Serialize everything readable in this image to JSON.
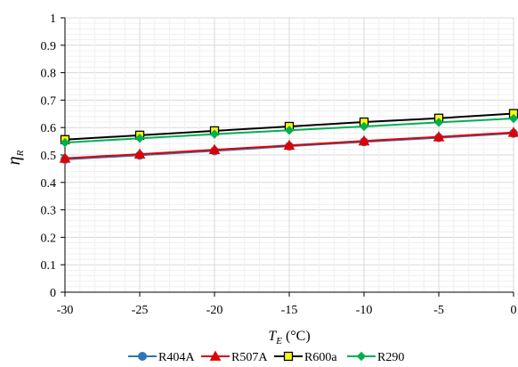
{
  "chart_data": {
    "type": "line",
    "x": [
      -30,
      -25,
      -20,
      -15,
      -10,
      -5,
      0
    ],
    "xlim": [
      -30,
      0
    ],
    "ylim": [
      0,
      1
    ],
    "x_ticks": [
      "-30",
      "-25",
      "-20",
      "-15",
      "-10",
      "-5",
      "0"
    ],
    "y_ticks": [
      "0",
      "0.1",
      "0.2",
      "0.3",
      "0.4",
      "0.5",
      "0.6",
      "0.7",
      "0.8",
      "0.9",
      "1"
    ],
    "xlabel": {
      "main": "T",
      "sub": "E",
      "unit": " (°C)"
    },
    "ylabel": {
      "main": "η",
      "sub": "R"
    },
    "grid": true,
    "legend_position": "bottom",
    "series": [
      {
        "name": "R404A",
        "color": "#2E75B6",
        "marker": "circle",
        "values": [
          0.484,
          0.499,
          0.515,
          0.532,
          0.548,
          0.563,
          0.579
        ]
      },
      {
        "name": "R507A",
        "color": "#E00000",
        "marker": "triangle",
        "values": [
          0.488,
          0.503,
          0.519,
          0.535,
          0.551,
          0.566,
          0.582
        ]
      },
      {
        "name": "R600a",
        "color": "#000000",
        "marker": "square",
        "values": [
          0.556,
          0.572,
          0.588,
          0.604,
          0.62,
          0.634,
          0.651
        ]
      },
      {
        "name": "R290",
        "color": "#00B050",
        "marker": "diamond",
        "values": [
          0.545,
          0.561,
          0.576,
          0.59,
          0.604,
          0.619,
          0.633
        ]
      }
    ]
  }
}
